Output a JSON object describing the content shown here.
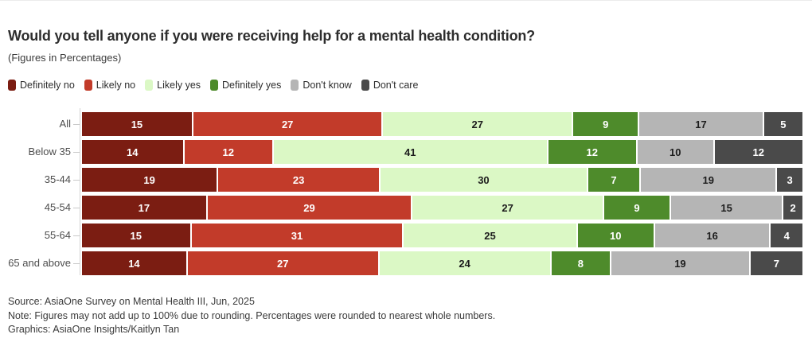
{
  "header": {
    "title": "Would you tell anyone if you were receiving help for a mental health condition?",
    "subtitle": "(Figures in Percentages)"
  },
  "legend": [
    {
      "label": "Definitely no",
      "color": "#7b1d12"
    },
    {
      "label": "Likely no",
      "color": "#c23b2a"
    },
    {
      "label": "Likely yes",
      "color": "#dbf8c5"
    },
    {
      "label": "Definitely yes",
      "color": "#4e8b2b"
    },
    {
      "label": "Don't know",
      "color": "#b5b5b5"
    },
    {
      "label": "Don't care",
      "color": "#4a4a4a"
    }
  ],
  "chart_data": {
    "type": "bar",
    "orientation": "horizontal",
    "stacked": true,
    "normalized": true,
    "legend_position": "top",
    "title": "Would you tell anyone if you were receiving help for a mental health condition?",
    "units": "percent",
    "categories": [
      "All",
      "Below 35",
      "35-44",
      "45-54",
      "55-64",
      "65 and above"
    ],
    "series": [
      {
        "name": "Definitely no",
        "color": "#7b1d12",
        "text_color": "#ffffff",
        "values": [
          15,
          14,
          19,
          17,
          15,
          14
        ]
      },
      {
        "name": "Likely no",
        "color": "#c23b2a",
        "text_color": "#ffffff",
        "values": [
          27,
          12,
          23,
          29,
          31,
          27
        ]
      },
      {
        "name": "Likely yes",
        "color": "#dbf8c5",
        "text_color": "#1d1d1d",
        "values": [
          27,
          41,
          30,
          27,
          25,
          24
        ]
      },
      {
        "name": "Definitely yes",
        "color": "#4e8b2b",
        "text_color": "#ffffff",
        "values": [
          9,
          12,
          7,
          9,
          10,
          8
        ]
      },
      {
        "name": "Don't know",
        "color": "#b5b5b5",
        "text_color": "#1d1d1d",
        "values": [
          17,
          10,
          19,
          15,
          16,
          19
        ]
      },
      {
        "name": "Don't care",
        "color": "#4a4a4a",
        "text_color": "#ffffff",
        "values": [
          5,
          12,
          3,
          2,
          4,
          7
        ]
      }
    ]
  },
  "footer": {
    "source": "Source: AsiaOne Survey on Mental Health III, Jun, 2025",
    "note": "Note: Figures may not add up to 100% due to rounding. Percentages were rounded to nearest whole numbers.",
    "graphics": "Graphics: AsiaOne Insights/Kaitlyn Tan"
  }
}
